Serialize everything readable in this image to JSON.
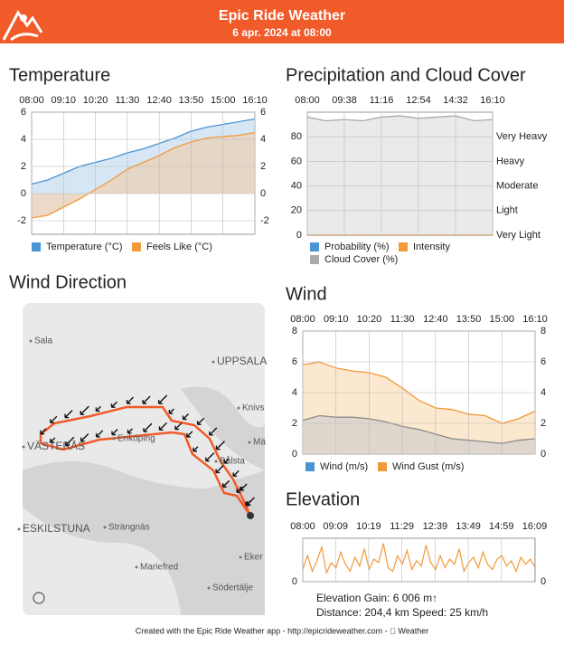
{
  "header": {
    "title": "Epic Ride Weather",
    "subtitle": "6 apr. 2024 at 08:00"
  },
  "chart_data": [
    {
      "type": "area",
      "title": "Temperature",
      "xlim": [
        480,
        970
      ],
      "xticks": [
        {
          "value": 480,
          "label": "08:00"
        },
        {
          "value": 550,
          "label": "09:10"
        },
        {
          "value": 620,
          "label": "10:20"
        },
        {
          "value": 690,
          "label": "11:30"
        },
        {
          "value": 760,
          "label": "12:40"
        },
        {
          "value": 830,
          "label": "13:50"
        },
        {
          "value": 900,
          "label": "15:00"
        },
        {
          "value": 970,
          "label": "16:10"
        }
      ],
      "ylim": [
        -3,
        6
      ],
      "yticks": [
        -2,
        0,
        2,
        4,
        6
      ],
      "mirror_yticks": true,
      "grid": true,
      "x": [
        480,
        515,
        550,
        585,
        620,
        655,
        690,
        725,
        760,
        795,
        830,
        865,
        900,
        935,
        970
      ],
      "series": [
        {
          "name": "Temperature (°C)",
          "color": "#4b94d3",
          "fill": "#cfe2f3",
          "values": [
            0.7,
            1.0,
            1.5,
            2.0,
            2.3,
            2.6,
            3.0,
            3.3,
            3.7,
            4.1,
            4.6,
            4.9,
            5.1,
            5.3,
            5.5
          ]
        },
        {
          "name": "Feels Like (°C)",
          "color": "#f2993a",
          "fill": "#e9d2bd",
          "values": [
            -1.8,
            -1.6,
            -1.0,
            -0.4,
            0.3,
            1.0,
            1.8,
            2.3,
            2.8,
            3.4,
            3.8,
            4.1,
            4.2,
            4.3,
            4.5
          ]
        }
      ]
    },
    {
      "type": "area",
      "title": "Precipitation and Cloud Cover",
      "xlim": [
        480,
        970
      ],
      "xticks": [
        {
          "value": 480,
          "label": "08:00"
        },
        {
          "value": 578,
          "label": "09:38"
        },
        {
          "value": 676,
          "label": "11:16"
        },
        {
          "value": 774,
          "label": "12:54"
        },
        {
          "value": 872,
          "label": "14:32"
        },
        {
          "value": 970,
          "label": "16:10"
        }
      ],
      "ylim": [
        0,
        100
      ],
      "yticks": [
        0,
        20,
        40,
        60,
        80
      ],
      "y2lim": [
        0,
        100
      ],
      "y2ticks": [
        {
          "value": 80,
          "label": "Very Heavy"
        },
        {
          "value": 60,
          "label": "Heavy"
        },
        {
          "value": 40,
          "label": "Moderate"
        },
        {
          "value": 20,
          "label": "Light"
        },
        {
          "value": 0,
          "label": "Very Light"
        }
      ],
      "grid": true,
      "x": [
        480,
        529,
        578,
        627,
        676,
        725,
        774,
        823,
        872,
        921,
        970
      ],
      "series": [
        {
          "name": "Probability (%)",
          "color": "#4b94d3",
          "fill": "#cfe2f3",
          "values": [
            0,
            0,
            0,
            0,
            0,
            0,
            0,
            0,
            0,
            0,
            0
          ]
        },
        {
          "name": "Intensity",
          "color": "#f2993a",
          "fill": "#f8dcb8",
          "axis": "y2",
          "values": [
            0,
            0,
            0,
            0,
            0,
            0,
            0,
            0,
            0,
            0,
            0
          ]
        },
        {
          "name": "Cloud Cover (%)",
          "color": "#aaaaaa",
          "fill": "#e6e6e6",
          "values": [
            96,
            93,
            94,
            93,
            96,
            97,
            95,
            96,
            97,
            93,
            94
          ]
        }
      ]
    },
    {
      "type": "area",
      "title": "Wind",
      "xlim": [
        480,
        970
      ],
      "xticks": [
        {
          "value": 480,
          "label": "08:00"
        },
        {
          "value": 550,
          "label": "09:10"
        },
        {
          "value": 620,
          "label": "10:20"
        },
        {
          "value": 690,
          "label": "11:30"
        },
        {
          "value": 760,
          "label": "12:40"
        },
        {
          "value": 830,
          "label": "13:50"
        },
        {
          "value": 900,
          "label": "15:00"
        },
        {
          "value": 970,
          "label": "16:10"
        }
      ],
      "ylim": [
        0,
        8
      ],
      "yticks": [
        0,
        2,
        4,
        6,
        8
      ],
      "mirror_yticks": true,
      "grid": true,
      "x": [
        480,
        515,
        550,
        585,
        620,
        655,
        690,
        725,
        760,
        795,
        830,
        865,
        900,
        935,
        970
      ],
      "series": [
        {
          "name": "Wind (m/s)",
          "color": "#8c8c8c",
          "fill": "#d9d4cc",
          "values": [
            2.2,
            2.5,
            2.4,
            2.4,
            2.3,
            2.1,
            1.8,
            1.6,
            1.3,
            1.0,
            0.9,
            0.8,
            0.7,
            0.9,
            1.0
          ]
        },
        {
          "name": "Wind Gust (m/s)",
          "color": "#f2993a",
          "fill": "#fbe3c7",
          "values": [
            5.8,
            6.0,
            5.6,
            5.4,
            5.3,
            5.0,
            4.3,
            3.5,
            3.0,
            2.9,
            2.6,
            2.5,
            2.0,
            2.3,
            2.8
          ]
        }
      ],
      "legend_colors": [
        "#4b94d3",
        "#f2993a"
      ]
    },
    {
      "type": "line",
      "title": "Elevation",
      "xlim": [
        480,
        970
      ],
      "xticks": [
        {
          "value": 480,
          "label": "08:00"
        },
        {
          "value": 549,
          "label": "09:09"
        },
        {
          "value": 619,
          "label": "10:19"
        },
        {
          "value": 689,
          "label": "11:29"
        },
        {
          "value": 759,
          "label": "12:39"
        },
        {
          "value": 829,
          "label": "13:49"
        },
        {
          "value": 899,
          "label": "14:59"
        },
        {
          "value": 969,
          "label": "16:09"
        }
      ],
      "ylim": [
        0,
        50
      ],
      "yticks": [
        0
      ],
      "mirror_yticks": true,
      "grid": true,
      "x": [
        480,
        490,
        500,
        510,
        520,
        530,
        540,
        550,
        560,
        570,
        580,
        590,
        600,
        610,
        620,
        630,
        640,
        650,
        660,
        670,
        680,
        690,
        700,
        710,
        720,
        730,
        740,
        750,
        760,
        770,
        780,
        790,
        800,
        810,
        820,
        830,
        840,
        850,
        860,
        870,
        880,
        890,
        900,
        910,
        920,
        930,
        940,
        950,
        960,
        970
      ],
      "series": [
        {
          "name": "Elevation",
          "color": "#f2993a",
          "values": [
            14,
            30,
            12,
            24,
            40,
            10,
            22,
            16,
            34,
            20,
            12,
            28,
            18,
            38,
            14,
            26,
            22,
            44,
            16,
            12,
            30,
            20,
            36,
            14,
            24,
            18,
            42,
            22,
            14,
            30,
            16,
            26,
            20,
            38,
            12,
            22,
            28,
            16,
            34,
            20,
            14,
            26,
            30,
            18,
            24,
            12,
            28,
            20,
            26,
            16
          ]
        }
      ],
      "annotations": [
        "Elevation Gain: 6 006 m↑",
        "Distance: 204,4 km   Speed: 25 km/h"
      ]
    }
  ],
  "map": {
    "title": "Wind Direction",
    "places": [
      "Sala",
      "UPPSALA",
      "Knivs",
      "Mä",
      "Enköping",
      "VÄSTERÅS",
      "Bålsta",
      "ESKILSTUNA",
      "Strängnäs",
      "Mariefred",
      "Eker",
      "Södertälje"
    ]
  },
  "footer": "Created with the Epic Ride Weather app - http://epicrideweather.com -  Weather"
}
